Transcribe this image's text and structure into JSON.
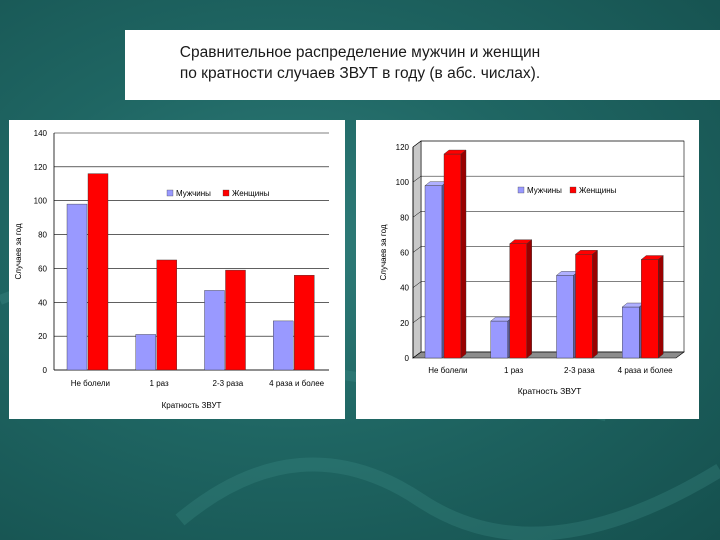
{
  "title_lines": [
    "Сравнительное распределение мужчин и женщин",
    "по кратности  случаев ЗВУТ в году (в абс. числах)."
  ],
  "colors": {
    "men": "#9999ff",
    "women": "#ff0000",
    "background": "#1f6663"
  },
  "chart_data": [
    {
      "type": "bar",
      "title": "",
      "categories": [
        "Не болели",
        "1 раз",
        "2-3 раза",
        "4 раза и более"
      ],
      "series": [
        {
          "name": "Мужчины",
          "values": [
            98,
            21,
            47,
            29
          ]
        },
        {
          "name": "Женщины",
          "values": [
            116,
            65,
            59,
            56
          ]
        }
      ],
      "xlabel": "Кратность ЗВУТ",
      "ylabel": "Случаев за год",
      "ylim": [
        0,
        140
      ],
      "yticks": [
        0,
        20,
        40,
        60,
        80,
        100,
        120,
        140
      ],
      "legend_position": "top-center",
      "grid": true,
      "style": "flat"
    },
    {
      "type": "bar",
      "title": "",
      "categories": [
        "Не болели",
        "1 раз",
        "2-3 раза",
        "4 раза и более"
      ],
      "series": [
        {
          "name": "Мужчины",
          "values": [
            98,
            21,
            47,
            29
          ]
        },
        {
          "name": "Женщины",
          "values": [
            116,
            65,
            59,
            56
          ]
        }
      ],
      "xlabel": "Кратность ЗВУТ",
      "ylabel": "Случаев за год",
      "ylim": [
        0,
        120
      ],
      "yticks": [
        0,
        20,
        40,
        60,
        80,
        100,
        120
      ],
      "legend_position": "top-right",
      "grid": true,
      "style": "3d"
    }
  ]
}
